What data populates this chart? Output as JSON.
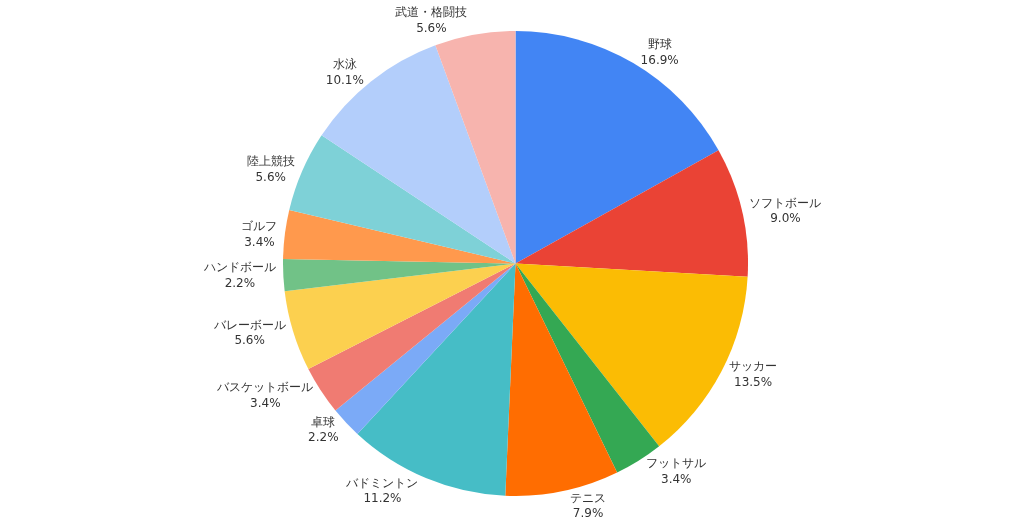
{
  "chart_data": {
    "type": "pie",
    "categories": [
      "野球",
      "ソフトボール",
      "サッカー",
      "フットサル",
      "テニス",
      "バドミントン",
      "卓球",
      "バスケットボール",
      "バレーボール",
      "ハンドボール",
      "ゴルフ",
      "陸上競技",
      "水泳",
      "武道・格闘技"
    ],
    "values": [
      16.9,
      9.0,
      13.5,
      3.4,
      7.9,
      11.2,
      2.2,
      3.4,
      5.6,
      2.2,
      3.4,
      5.6,
      10.1,
      5.6
    ],
    "value_labels": [
      "16.9%",
      "9.0%",
      "13.5%",
      "3.4%",
      "7.9%",
      "11.2%",
      "2.2%",
      "3.4%",
      "5.6%",
      "2.2%",
      "3.4%",
      "5.6%",
      "10.1%",
      "5.6%"
    ],
    "colors": [
      "#4285f4",
      "#ea4335",
      "#fbbc04",
      "#34a853",
      "#ff6d01",
      "#46bdc6",
      "#7baaf7",
      "#f07b72",
      "#fcd04f",
      "#71c287",
      "#ff994d",
      "#7ed1d7",
      "#b3cefb",
      "#f7b4ae"
    ],
    "legend": false
  }
}
